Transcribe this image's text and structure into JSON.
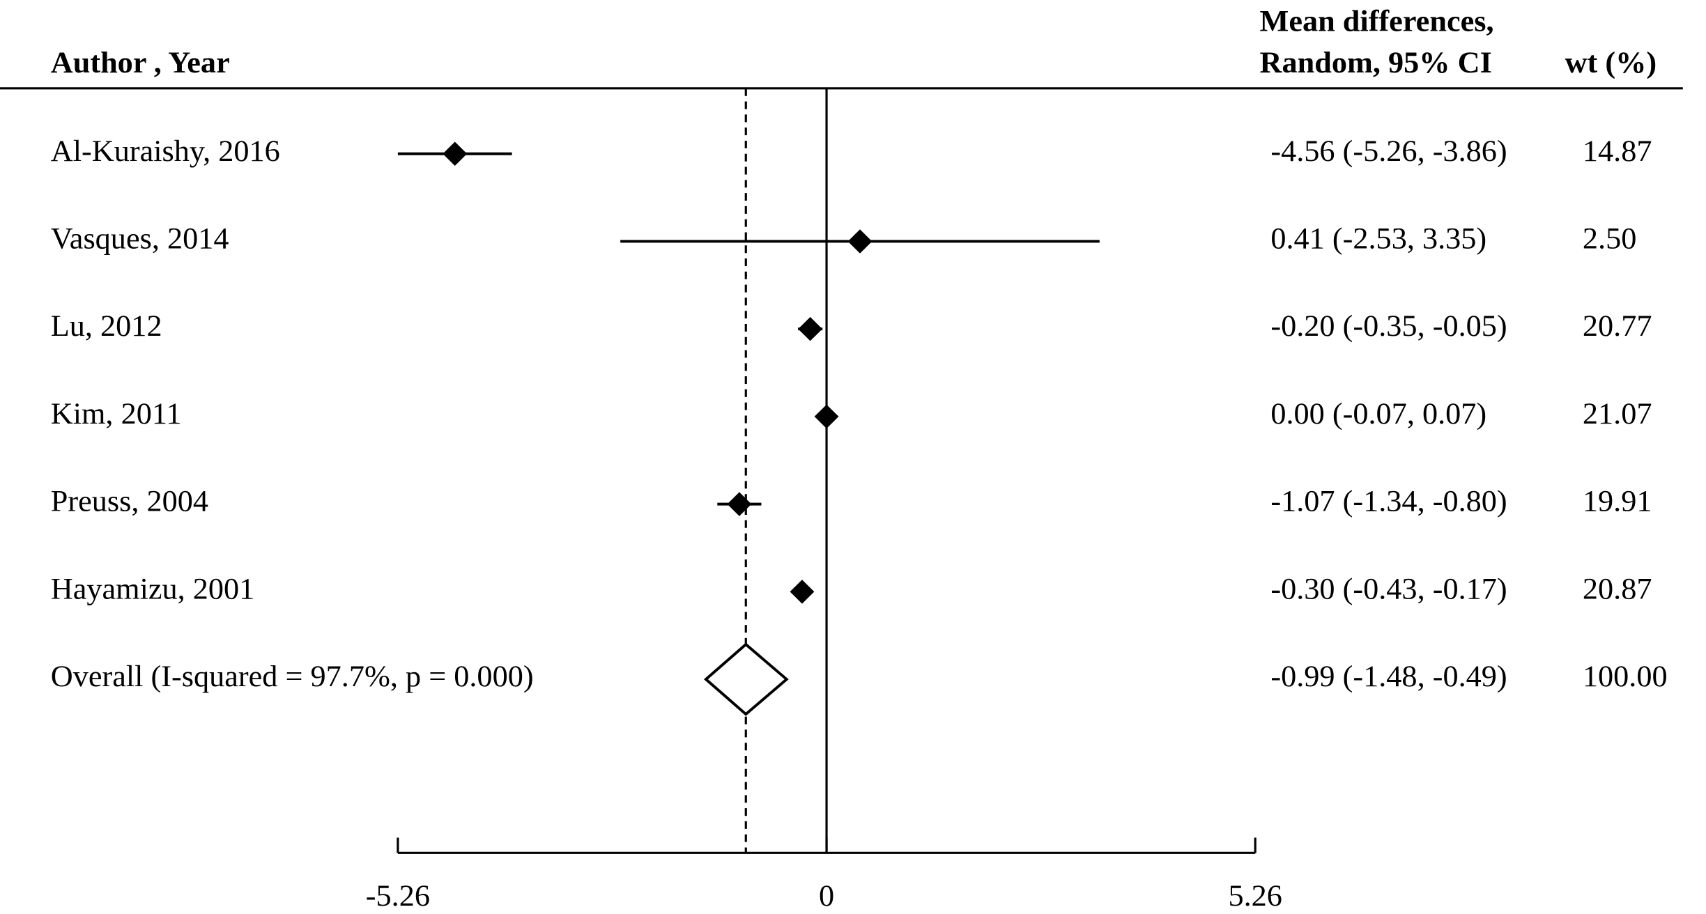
{
  "chart_data": {
    "type": "forest",
    "columns": {
      "study": "Author , Year",
      "effect": [
        "Mean differences,",
        "Random, 95% CI"
      ],
      "weight": "wt (%)"
    },
    "studies": [
      {
        "label": "Al-Kuraishy, 2016",
        "mean": -4.56,
        "lower": -5.26,
        "upper": -3.86,
        "ci_label": "-4.56 (-5.26, -3.86)",
        "weight": "14.87"
      },
      {
        "label": "Vasques, 2014",
        "mean": 0.41,
        "lower": -2.53,
        "upper": 3.35,
        "ci_label": "0.41 (-2.53, 3.35)",
        "weight": "2.50"
      },
      {
        "label": "Lu, 2012",
        "mean": -0.2,
        "lower": -0.35,
        "upper": -0.05,
        "ci_label": "-0.20 (-0.35, -0.05)",
        "weight": "20.77"
      },
      {
        "label": "Kim, 2011",
        "mean": 0.0,
        "lower": -0.07,
        "upper": 0.07,
        "ci_label": "0.00 (-0.07, 0.07)",
        "weight": "21.07"
      },
      {
        "label": "Preuss, 2004",
        "mean": -1.07,
        "lower": -1.34,
        "upper": -0.8,
        "ci_label": "-1.07 (-1.34, -0.80)",
        "weight": "19.91"
      },
      {
        "label": "Hayamizu, 2001",
        "mean": -0.3,
        "lower": -0.43,
        "upper": -0.17,
        "ci_label": "-0.30 (-0.43, -0.17)",
        "weight": "20.87"
      }
    ],
    "overall": {
      "label": "Overall  (I-squared = 97.7%, p = 0.000)",
      "mean": -0.99,
      "lower": -1.48,
      "upper": -0.49,
      "ci_label": "-0.99 (-1.48, -0.49)",
      "weight": "100.00"
    },
    "null_line": 0,
    "color": "#000000",
    "xlim": [
      -5.26,
      5.26
    ],
    "xticks": [
      -5.26,
      0,
      5.26
    ]
  }
}
